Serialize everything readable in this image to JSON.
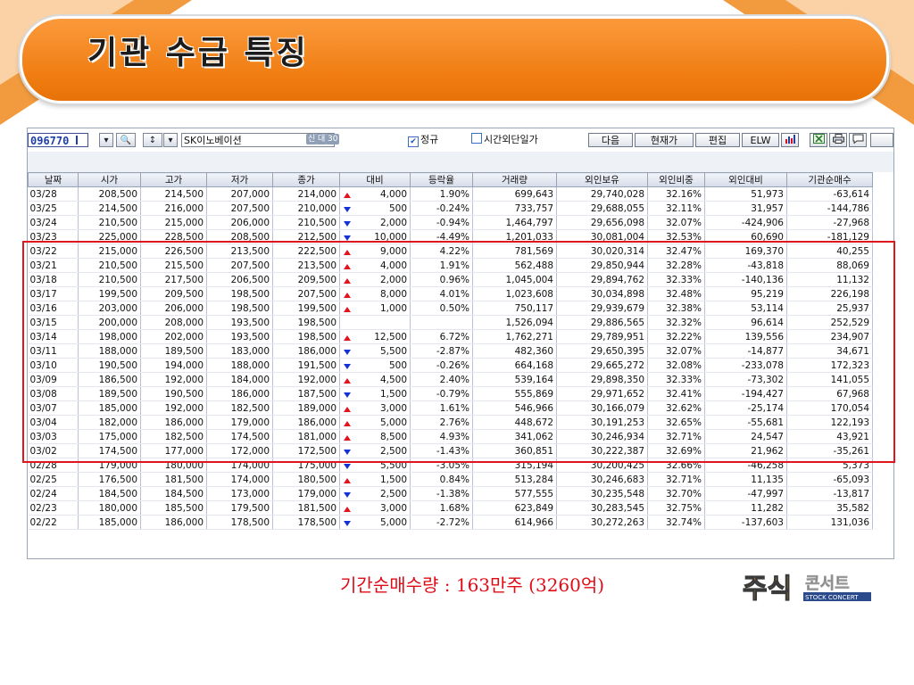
{
  "slide": {
    "title": "기관 수급 특징",
    "note": "기간순매수량 : 163만주 (3260억)",
    "logo": {
      "main": "주식",
      "side": "콘서트",
      "tagline": "STOCK CONCERT"
    }
  },
  "colors": {
    "accent": "#f07d12",
    "up": "#e0141e",
    "down": "#1730d2",
    "highlight": "#e0161e"
  },
  "toolbar": {
    "code": "096770",
    "stock_name": "SK이노베이션",
    "tags": [
      "신",
      "대",
      "30"
    ],
    "checkbox_regular": {
      "label": "정규",
      "checked": true
    },
    "checkbox_after": {
      "label": "시간외단일가",
      "checked": false
    },
    "buttons": [
      "다음",
      "현재가",
      "편집",
      "ELW"
    ],
    "icons": [
      "search-icon",
      "sort-icon",
      "chart-icon",
      "excel-icon",
      "print-icon",
      "chat-icon"
    ]
  },
  "table": {
    "columns": [
      "날짜",
      "시가",
      "고가",
      "저가",
      "종가",
      "대비",
      "등락율",
      "거래량",
      "외인보유",
      "외인비중",
      "외인대비",
      "기관순매수"
    ],
    "rows": [
      {
        "date": "03/28",
        "open": "208,500",
        "high": "214,500",
        "low": "207,000",
        "close": "214,000",
        "dir": "up",
        "diff": "4,000",
        "rate": "1.90%",
        "volume": "699,643",
        "hold": "29,740,028",
        "ratio": "32.16%",
        "fdiff": "51,973",
        "inst": "-63,614"
      },
      {
        "date": "03/25",
        "open": "214,500",
        "high": "216,000",
        "low": "207,500",
        "close": "210,000",
        "dir": "dn",
        "diff": "500",
        "rate": "-0.24%",
        "volume": "733,757",
        "hold": "29,688,055",
        "ratio": "32.11%",
        "fdiff": "31,957",
        "inst": "-144,786"
      },
      {
        "date": "03/24",
        "open": "210,500",
        "high": "215,000",
        "low": "206,000",
        "close": "210,500",
        "dir": "dn",
        "diff": "2,000",
        "rate": "-0.94%",
        "volume": "1,464,797",
        "hold": "29,656,098",
        "ratio": "32.07%",
        "fdiff": "-424,906",
        "inst": "-27,968"
      },
      {
        "date": "03/23",
        "open": "225,000",
        "high": "228,500",
        "low": "208,500",
        "close": "212,500",
        "dir": "dn",
        "diff": "10,000",
        "rate": "-4.49%",
        "volume": "1,201,033",
        "hold": "30,081,004",
        "ratio": "32.53%",
        "fdiff": "60,690",
        "inst": "-181,129"
      },
      {
        "date": "03/22",
        "open": "215,000",
        "high": "226,500",
        "low": "213,500",
        "close": "222,500",
        "dir": "up",
        "diff": "9,000",
        "rate": "4.22%",
        "volume": "781,569",
        "hold": "30,020,314",
        "ratio": "32.47%",
        "fdiff": "169,370",
        "inst": "40,255"
      },
      {
        "date": "03/21",
        "open": "210,500",
        "high": "215,500",
        "low": "207,500",
        "close": "213,500",
        "dir": "up",
        "diff": "4,000",
        "rate": "1.91%",
        "volume": "562,488",
        "hold": "29,850,944",
        "ratio": "32.28%",
        "fdiff": "-43,818",
        "inst": "88,069"
      },
      {
        "date": "03/18",
        "open": "210,500",
        "high": "217,500",
        "low": "206,500",
        "close": "209,500",
        "dir": "up",
        "diff": "2,000",
        "rate": "0.96%",
        "volume": "1,045,004",
        "hold": "29,894,762",
        "ratio": "32.33%",
        "fdiff": "-140,136",
        "inst": "11,132"
      },
      {
        "date": "03/17",
        "open": "199,500",
        "high": "209,500",
        "low": "198,500",
        "close": "207,500",
        "dir": "up",
        "diff": "8,000",
        "rate": "4.01%",
        "volume": "1,023,608",
        "hold": "30,034,898",
        "ratio": "32.48%",
        "fdiff": "95,219",
        "inst": "226,198"
      },
      {
        "date": "03/16",
        "open": "203,000",
        "high": "206,000",
        "low": "198,500",
        "close": "199,500",
        "dir": "up",
        "diff": "1,000",
        "rate": "0.50%",
        "volume": "750,117",
        "hold": "29,939,679",
        "ratio": "32.38%",
        "fdiff": "53,114",
        "inst": "25,937"
      },
      {
        "date": "03/15",
        "open": "200,000",
        "high": "208,000",
        "low": "193,500",
        "close": "198,500",
        "dir": "",
        "diff": "",
        "rate": "",
        "volume": "1,526,094",
        "hold": "29,886,565",
        "ratio": "32.32%",
        "fdiff": "96,614",
        "inst": "252,529"
      },
      {
        "date": "03/14",
        "open": "198,000",
        "high": "202,000",
        "low": "193,500",
        "close": "198,500",
        "dir": "up",
        "diff": "12,500",
        "rate": "6.72%",
        "volume": "1,762,271",
        "hold": "29,789,951",
        "ratio": "32.22%",
        "fdiff": "139,556",
        "inst": "234,907"
      },
      {
        "date": "03/11",
        "open": "188,000",
        "high": "189,500",
        "low": "183,000",
        "close": "186,000",
        "dir": "dn",
        "diff": "5,500",
        "rate": "-2.87%",
        "volume": "482,360",
        "hold": "29,650,395",
        "ratio": "32.07%",
        "fdiff": "-14,877",
        "inst": "34,671"
      },
      {
        "date": "03/10",
        "open": "190,500",
        "high": "194,000",
        "low": "188,000",
        "close": "191,500",
        "dir": "dn",
        "diff": "500",
        "rate": "-0.26%",
        "volume": "664,168",
        "hold": "29,665,272",
        "ratio": "32.08%",
        "fdiff": "-233,078",
        "inst": "172,323"
      },
      {
        "date": "03/09",
        "open": "186,500",
        "high": "192,000",
        "low": "184,000",
        "close": "192,000",
        "dir": "up",
        "diff": "4,500",
        "rate": "2.40%",
        "volume": "539,164",
        "hold": "29,898,350",
        "ratio": "32.33%",
        "fdiff": "-73,302",
        "inst": "141,055"
      },
      {
        "date": "03/08",
        "open": "189,500",
        "high": "190,500",
        "low": "186,000",
        "close": "187,500",
        "dir": "dn",
        "diff": "1,500",
        "rate": "-0.79%",
        "volume": "555,869",
        "hold": "29,971,652",
        "ratio": "32.41%",
        "fdiff": "-194,427",
        "inst": "67,968"
      },
      {
        "date": "03/07",
        "open": "185,000",
        "high": "192,000",
        "low": "182,500",
        "close": "189,000",
        "dir": "up",
        "diff": "3,000",
        "rate": "1.61%",
        "volume": "546,966",
        "hold": "30,166,079",
        "ratio": "32.62%",
        "fdiff": "-25,174",
        "inst": "170,054"
      },
      {
        "date": "03/04",
        "open": "182,000",
        "high": "186,000",
        "low": "179,000",
        "close": "186,000",
        "dir": "up",
        "diff": "5,000",
        "rate": "2.76%",
        "volume": "448,672",
        "hold": "30,191,253",
        "ratio": "32.65%",
        "fdiff": "-55,681",
        "inst": "122,193"
      },
      {
        "date": "03/03",
        "open": "175,000",
        "high": "182,500",
        "low": "174,500",
        "close": "181,000",
        "dir": "up",
        "diff": "8,500",
        "rate": "4.93%",
        "volume": "341,062",
        "hold": "30,246,934",
        "ratio": "32.71%",
        "fdiff": "24,547",
        "inst": "43,921"
      },
      {
        "date": "03/02",
        "open": "174,500",
        "high": "177,000",
        "low": "172,000",
        "close": "172,500",
        "dir": "dn",
        "diff": "2,500",
        "rate": "-1.43%",
        "volume": "360,851",
        "hold": "30,222,387",
        "ratio": "32.69%",
        "fdiff": "21,962",
        "inst": "-35,261"
      },
      {
        "date": "02/28",
        "open": "179,000",
        "high": "180,000",
        "low": "174,000",
        "close": "175,000",
        "dir": "dn",
        "diff": "5,500",
        "rate": "-3.05%",
        "volume": "315,194",
        "hold": "30,200,425",
        "ratio": "32.66%",
        "fdiff": "-46,258",
        "inst": "5,373"
      },
      {
        "date": "02/25",
        "open": "176,500",
        "high": "181,500",
        "low": "174,000",
        "close": "180,500",
        "dir": "up",
        "diff": "1,500",
        "rate": "0.84%",
        "volume": "513,284",
        "hold": "30,246,683",
        "ratio": "32.71%",
        "fdiff": "11,135",
        "inst": "-65,093"
      },
      {
        "date": "02/24",
        "open": "184,500",
        "high": "184,500",
        "low": "173,000",
        "close": "179,000",
        "dir": "dn",
        "diff": "2,500",
        "rate": "-1.38%",
        "volume": "577,555",
        "hold": "30,235,548",
        "ratio": "32.70%",
        "fdiff": "-47,997",
        "inst": "-13,817"
      },
      {
        "date": "02/23",
        "open": "180,000",
        "high": "185,500",
        "low": "179,500",
        "close": "181,500",
        "dir": "up",
        "diff": "3,000",
        "rate": "1.68%",
        "volume": "623,849",
        "hold": "30,283,545",
        "ratio": "32.75%",
        "fdiff": "11,282",
        "inst": "35,582"
      },
      {
        "date": "02/22",
        "open": "185,000",
        "high": "186,000",
        "low": "178,500",
        "close": "178,500",
        "dir": "dn",
        "diff": "5,000",
        "rate": "-2.72%",
        "volume": "614,966",
        "hold": "30,272,263",
        "ratio": "32.74%",
        "fdiff": "-137,603",
        "inst": "131,036"
      }
    ]
  }
}
